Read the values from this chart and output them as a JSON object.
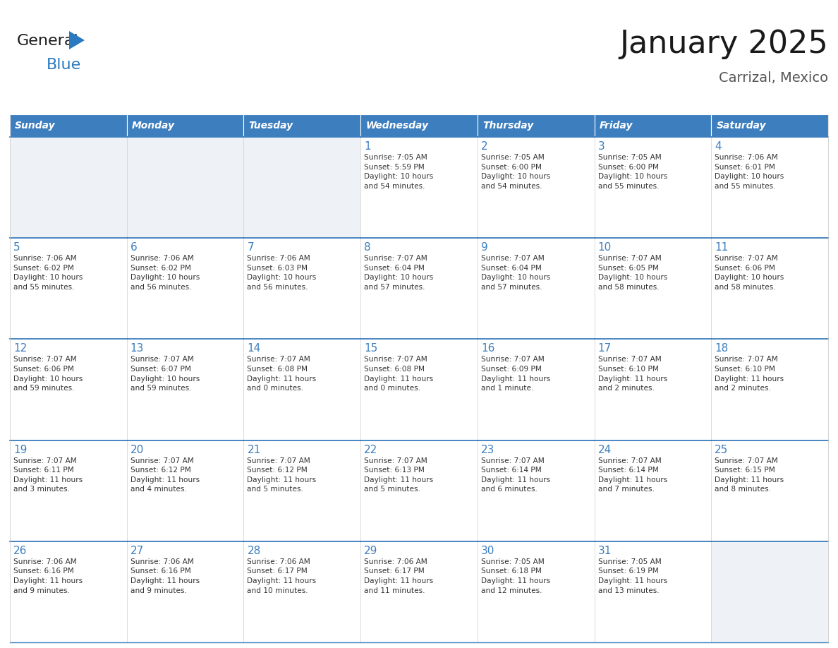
{
  "title": "January 2025",
  "subtitle": "Carrizal, Mexico",
  "days_of_week": [
    "Sunday",
    "Monday",
    "Tuesday",
    "Wednesday",
    "Thursday",
    "Friday",
    "Saturday"
  ],
  "header_bg_color": "#3d7ebf",
  "header_text_color": "#ffffff",
  "grid_line_color": "#3d7ebf",
  "day_number_color": "#3d7ebf",
  "cell_text_color": "#333333",
  "empty_cell_bg_color": "#eef1f5",
  "title_color": "#1a1a1a",
  "subtitle_color": "#555555",
  "logo_general_color": "#1a1a1a",
  "logo_blue_color": "#2b7abf",
  "calendar_data": [
    [
      {
        "day": null,
        "text": ""
      },
      {
        "day": null,
        "text": ""
      },
      {
        "day": null,
        "text": ""
      },
      {
        "day": 1,
        "text": "Sunrise: 7:05 AM\nSunset: 5:59 PM\nDaylight: 10 hours\nand 54 minutes."
      },
      {
        "day": 2,
        "text": "Sunrise: 7:05 AM\nSunset: 6:00 PM\nDaylight: 10 hours\nand 54 minutes."
      },
      {
        "day": 3,
        "text": "Sunrise: 7:05 AM\nSunset: 6:00 PM\nDaylight: 10 hours\nand 55 minutes."
      },
      {
        "day": 4,
        "text": "Sunrise: 7:06 AM\nSunset: 6:01 PM\nDaylight: 10 hours\nand 55 minutes."
      }
    ],
    [
      {
        "day": 5,
        "text": "Sunrise: 7:06 AM\nSunset: 6:02 PM\nDaylight: 10 hours\nand 55 minutes."
      },
      {
        "day": 6,
        "text": "Sunrise: 7:06 AM\nSunset: 6:02 PM\nDaylight: 10 hours\nand 56 minutes."
      },
      {
        "day": 7,
        "text": "Sunrise: 7:06 AM\nSunset: 6:03 PM\nDaylight: 10 hours\nand 56 minutes."
      },
      {
        "day": 8,
        "text": "Sunrise: 7:07 AM\nSunset: 6:04 PM\nDaylight: 10 hours\nand 57 minutes."
      },
      {
        "day": 9,
        "text": "Sunrise: 7:07 AM\nSunset: 6:04 PM\nDaylight: 10 hours\nand 57 minutes."
      },
      {
        "day": 10,
        "text": "Sunrise: 7:07 AM\nSunset: 6:05 PM\nDaylight: 10 hours\nand 58 minutes."
      },
      {
        "day": 11,
        "text": "Sunrise: 7:07 AM\nSunset: 6:06 PM\nDaylight: 10 hours\nand 58 minutes."
      }
    ],
    [
      {
        "day": 12,
        "text": "Sunrise: 7:07 AM\nSunset: 6:06 PM\nDaylight: 10 hours\nand 59 minutes."
      },
      {
        "day": 13,
        "text": "Sunrise: 7:07 AM\nSunset: 6:07 PM\nDaylight: 10 hours\nand 59 minutes."
      },
      {
        "day": 14,
        "text": "Sunrise: 7:07 AM\nSunset: 6:08 PM\nDaylight: 11 hours\nand 0 minutes."
      },
      {
        "day": 15,
        "text": "Sunrise: 7:07 AM\nSunset: 6:08 PM\nDaylight: 11 hours\nand 0 minutes."
      },
      {
        "day": 16,
        "text": "Sunrise: 7:07 AM\nSunset: 6:09 PM\nDaylight: 11 hours\nand 1 minute."
      },
      {
        "day": 17,
        "text": "Sunrise: 7:07 AM\nSunset: 6:10 PM\nDaylight: 11 hours\nand 2 minutes."
      },
      {
        "day": 18,
        "text": "Sunrise: 7:07 AM\nSunset: 6:10 PM\nDaylight: 11 hours\nand 2 minutes."
      }
    ],
    [
      {
        "day": 19,
        "text": "Sunrise: 7:07 AM\nSunset: 6:11 PM\nDaylight: 11 hours\nand 3 minutes."
      },
      {
        "day": 20,
        "text": "Sunrise: 7:07 AM\nSunset: 6:12 PM\nDaylight: 11 hours\nand 4 minutes."
      },
      {
        "day": 21,
        "text": "Sunrise: 7:07 AM\nSunset: 6:12 PM\nDaylight: 11 hours\nand 5 minutes."
      },
      {
        "day": 22,
        "text": "Sunrise: 7:07 AM\nSunset: 6:13 PM\nDaylight: 11 hours\nand 5 minutes."
      },
      {
        "day": 23,
        "text": "Sunrise: 7:07 AM\nSunset: 6:14 PM\nDaylight: 11 hours\nand 6 minutes."
      },
      {
        "day": 24,
        "text": "Sunrise: 7:07 AM\nSunset: 6:14 PM\nDaylight: 11 hours\nand 7 minutes."
      },
      {
        "day": 25,
        "text": "Sunrise: 7:07 AM\nSunset: 6:15 PM\nDaylight: 11 hours\nand 8 minutes."
      }
    ],
    [
      {
        "day": 26,
        "text": "Sunrise: 7:06 AM\nSunset: 6:16 PM\nDaylight: 11 hours\nand 9 minutes."
      },
      {
        "day": 27,
        "text": "Sunrise: 7:06 AM\nSunset: 6:16 PM\nDaylight: 11 hours\nand 9 minutes."
      },
      {
        "day": 28,
        "text": "Sunrise: 7:06 AM\nSunset: 6:17 PM\nDaylight: 11 hours\nand 10 minutes."
      },
      {
        "day": 29,
        "text": "Sunrise: 7:06 AM\nSunset: 6:17 PM\nDaylight: 11 hours\nand 11 minutes."
      },
      {
        "day": 30,
        "text": "Sunrise: 7:05 AM\nSunset: 6:18 PM\nDaylight: 11 hours\nand 12 minutes."
      },
      {
        "day": 31,
        "text": "Sunrise: 7:05 AM\nSunset: 6:19 PM\nDaylight: 11 hours\nand 13 minutes."
      },
      {
        "day": null,
        "text": ""
      }
    ]
  ]
}
